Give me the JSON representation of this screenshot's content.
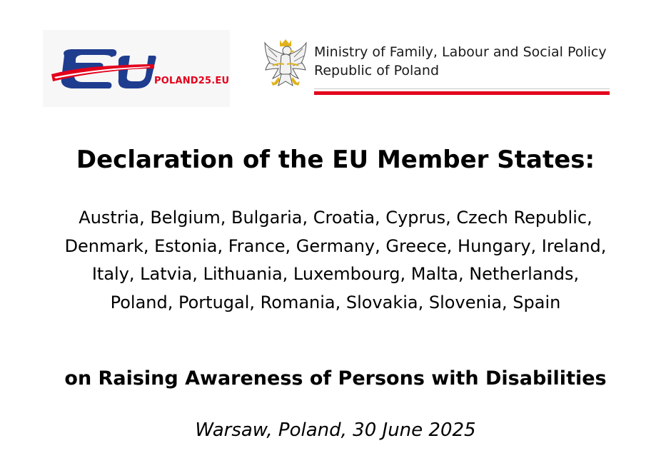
{
  "header": {
    "eu_logo_text": "POLAND25.EU",
    "ministry_line1": "Ministry of Family, Labour and Social Policy",
    "ministry_line2": "Republic of Poland"
  },
  "document": {
    "title": "Declaration of the EU Member States:",
    "countries": "Austria, Belgium, Bulgaria, Croatia, Cyprus, Czech Republic, Denmark, Estonia, France, Germany, Greece, Hungary, Ireland, Italy, Latvia, Lithuania, Luxembourg, Malta, Netherlands, Poland, Portugal, Romania, Slovakia, Slovenia, Spain",
    "subtitle": "on Raising Awareness of Persons with Disabilities",
    "dateline": "Warsaw, Poland, 30 June 2025"
  },
  "colors": {
    "brand_blue": "#1f3d8f",
    "brand_red": "#e3001b",
    "eagle_gold": "#e0b21c"
  },
  "icons": {
    "eu_logo": "poland25-eu-logo",
    "emblem": "polish-eagle-emblem-icon"
  }
}
